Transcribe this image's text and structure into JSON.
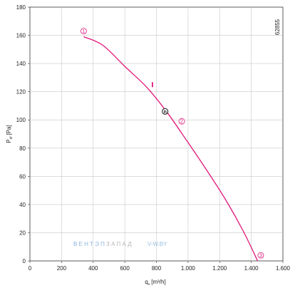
{
  "chart_data": {
    "type": "line",
    "title": "",
    "xlabel": "q",
    "xlabel_sub": "v",
    "xlabel_unit": "[m³/h]",
    "ylabel": "P",
    "ylabel_sub": "sf",
    "ylabel_unit": "[Pa]",
    "xlim": [
      0,
      1600
    ],
    "ylim": [
      0,
      180
    ],
    "x_ticks": [
      0,
      200,
      400,
      600,
      800,
      1000,
      1200,
      1400,
      1600
    ],
    "x_tick_labels": [
      "0",
      "200",
      "400",
      "600",
      "800",
      "1.000",
      "1.200",
      "1.400",
      "1.600"
    ],
    "y_ticks": [
      0,
      20,
      40,
      60,
      80,
      100,
      120,
      140,
      160,
      180
    ],
    "y_tick_labels": [
      "0",
      "20",
      "40",
      "60",
      "80",
      "100",
      "120",
      "140",
      "160",
      "180"
    ],
    "grid": true,
    "series": [
      {
        "color": "#e0157a",
        "x": [
          340,
          460,
          600,
          740,
          870,
          1000,
          1120,
          1240,
          1350,
          1440
        ],
        "y": [
          159,
          153,
          138,
          123,
          105,
          84,
          64,
          43,
          21,
          0
        ]
      }
    ],
    "point_markers": [
      {
        "label": "1",
        "x": 340,
        "y": 163,
        "color": "#e0157a"
      },
      {
        "label": "2",
        "x": 960,
        "y": 99,
        "color": "#e0157a"
      },
      {
        "label": "3",
        "x": 1460,
        "y": 4,
        "color": "#e0157a"
      }
    ],
    "operating_point": {
      "label": "n",
      "x": 855,
      "y": 106,
      "color": "#111111"
    },
    "tick_mark": {
      "x": 775,
      "y": 125,
      "color": "#e0157a"
    },
    "chart_id": "62855",
    "watermark": {
      "part1": "ВЕНТЭП",
      "part2": "ЗАПАД",
      "part3": "V-W.BY",
      "color1": "#8ab4e0",
      "color2": "#b5b5b5",
      "color3": "#9bbfe0"
    }
  }
}
